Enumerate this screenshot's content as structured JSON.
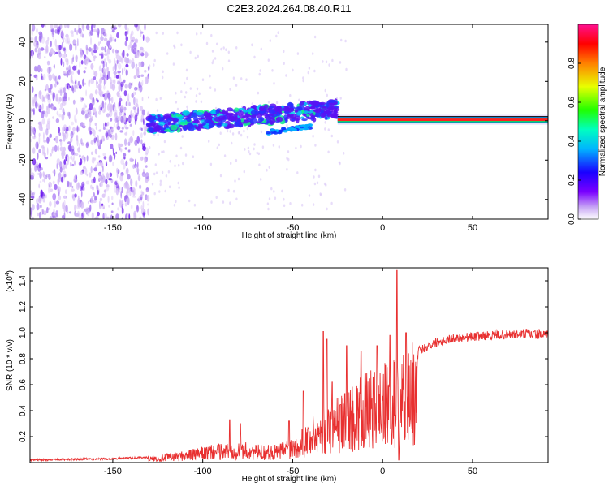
{
  "title": "C2E3.2024.264.08.40.R11",
  "spectrogram": {
    "type": "heatmap",
    "xlabel": "Height of straight line (km)",
    "ylabel": "Frequency (Hz)",
    "xlim": [
      -196,
      92
    ],
    "ylim": [
      -50,
      49
    ],
    "xticks": [
      -150,
      -100,
      -50,
      0,
      50
    ],
    "yticks": [
      -40,
      -20,
      0,
      20,
      40
    ],
    "colorbar": {
      "label": "Normalized spectral amplitude",
      "range": [
        0.0,
        1.0
      ],
      "ticks": [
        "0.0",
        "0.2",
        "0.4",
        "0.6",
        "0.8"
      ],
      "colors": [
        "#ffffff",
        "#7a00ff",
        "#1a00ff",
        "#00c8ff",
        "#00ff40",
        "#f0ff00",
        "#ff6000",
        "#ff0000",
        "#ff00c0"
      ]
    },
    "features": [
      {
        "x_range": [
          -196,
          -130
        ],
        "freq_range": [
          -50,
          49
        ],
        "amplitude": 0.1,
        "note": "broadband noise"
      },
      {
        "x_range": [
          -130,
          -25
        ],
        "freq_center_start": -2,
        "freq_center_end": 6,
        "amplitude": 0.3
      },
      {
        "x_range": [
          -65,
          -40
        ],
        "freq_center_start": -6,
        "freq_center_end": -3,
        "amplitude": 0.35
      },
      {
        "x_range": [
          -25,
          92
        ],
        "freq_center": 0.5,
        "amplitude": 0.95
      }
    ]
  },
  "snr": {
    "type": "line",
    "xlabel": "Height of straight line (km)",
    "ylabel": "SNR (10 * v/v)",
    "yscale_label": "(x10",
    "yscale_exp": "4",
    "scale_close": ")",
    "xlim": [
      -196,
      92
    ],
    "ylim": [
      0,
      1.5
    ],
    "xticks": [
      -150,
      -100,
      -50,
      0,
      50
    ],
    "yticks": [
      "0.2",
      "0.4",
      "0.6",
      "0.8",
      "1.0",
      "1.2",
      "1.4"
    ],
    "color": "#e83030",
    "envelope": [
      [
        -196,
        0.02
      ],
      [
        -150,
        0.03
      ],
      [
        -130,
        0.04
      ],
      [
        -110,
        0.08
      ],
      [
        -95,
        0.12
      ],
      [
        -80,
        0.15
      ],
      [
        -70,
        0.12
      ],
      [
        -60,
        0.12
      ],
      [
        -50,
        0.18
      ],
      [
        -40,
        0.3
      ],
      [
        -30,
        0.4
      ],
      [
        -20,
        0.5
      ],
      [
        -10,
        0.6
      ],
      [
        0,
        0.66
      ],
      [
        10,
        0.72
      ],
      [
        20,
        0.86
      ],
      [
        30,
        0.93
      ],
      [
        40,
        0.96
      ],
      [
        50,
        0.97
      ],
      [
        60,
        0.98
      ],
      [
        80,
        0.99
      ],
      [
        92,
        0.98
      ]
    ],
    "spikes": [
      [
        -85,
        0.33
      ],
      [
        -79,
        0.3
      ],
      [
        -52,
        0.32
      ],
      [
        -44,
        0.55
      ],
      [
        -33,
        1.01
      ],
      [
        -31,
        0.95
      ],
      [
        -28,
        0.62
      ],
      [
        -20,
        0.9
      ],
      [
        -12,
        0.86
      ],
      [
        -3,
        0.9
      ],
      [
        4,
        0.98
      ],
      [
        8,
        1.48
      ],
      [
        9,
        0.02
      ],
      [
        13,
        1.0
      ]
    ]
  }
}
